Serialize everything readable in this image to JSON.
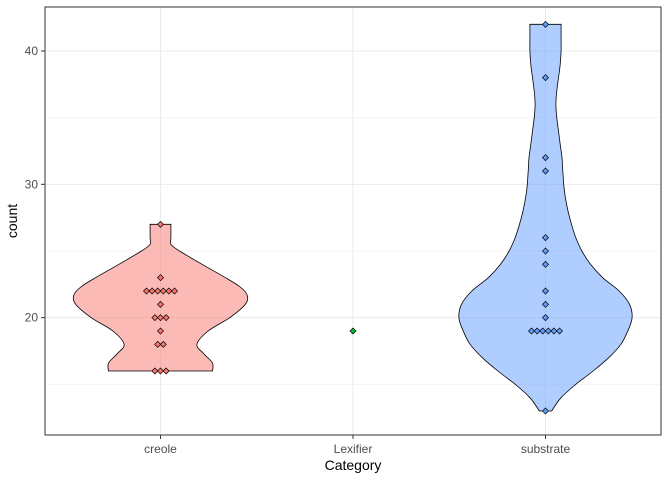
{
  "chart_data": {
    "type": "violin",
    "xlabel": "Category",
    "ylabel": "count",
    "categories": [
      "creole",
      "Lexifier",
      "substrate"
    ],
    "ylim": [
      11.2,
      43.3
    ],
    "yticks": [
      20,
      30,
      40
    ],
    "grid": true,
    "legend": "none",
    "series": [
      {
        "category": "creole",
        "color": "#F8766D",
        "points": [
          16,
          16,
          16,
          18,
          18,
          19,
          20,
          20,
          20,
          21,
          22,
          22,
          22,
          22,
          22,
          22,
          23,
          27
        ],
        "violin_min": 16,
        "violin_max": 27,
        "density": [
          [
            16,
            0.6
          ],
          [
            16.6,
            0.6
          ],
          [
            17.3,
            0.5
          ],
          [
            18,
            0.42
          ],
          [
            19,
            0.55
          ],
          [
            20,
            0.8
          ],
          [
            21,
            0.98
          ],
          [
            21.7,
            1.0
          ],
          [
            22.3,
            0.92
          ],
          [
            23,
            0.75
          ],
          [
            24,
            0.48
          ],
          [
            25,
            0.22
          ],
          [
            25.5,
            0.12
          ],
          [
            26,
            0.12
          ],
          [
            27,
            0.12
          ]
        ]
      },
      {
        "category": "Lexifier",
        "color": "#00BA38",
        "points": [
          19
        ],
        "violin_min": 19,
        "violin_max": 19,
        "density": []
      },
      {
        "category": "substrate",
        "color": "#619CFF",
        "points": [
          13,
          19,
          19,
          19,
          19,
          19,
          19,
          20,
          21,
          22,
          24,
          25,
          26,
          31,
          32,
          38,
          42
        ],
        "violin_min": 13,
        "violin_max": 42,
        "density": [
          [
            13,
            0.07
          ],
          [
            14,
            0.18
          ],
          [
            15,
            0.35
          ],
          [
            16,
            0.55
          ],
          [
            17,
            0.73
          ],
          [
            18,
            0.87
          ],
          [
            19,
            0.95
          ],
          [
            20,
            1.0
          ],
          [
            21,
            0.97
          ],
          [
            22,
            0.85
          ],
          [
            23,
            0.66
          ],
          [
            24,
            0.52
          ],
          [
            25,
            0.42
          ],
          [
            26,
            0.35
          ],
          [
            27,
            0.3
          ],
          [
            28,
            0.26
          ],
          [
            29,
            0.23
          ],
          [
            30,
            0.21
          ],
          [
            31,
            0.2
          ],
          [
            32,
            0.19
          ],
          [
            33,
            0.17
          ],
          [
            34,
            0.15
          ],
          [
            35,
            0.13
          ],
          [
            36,
            0.12
          ],
          [
            37,
            0.13
          ],
          [
            38,
            0.15
          ],
          [
            39,
            0.17
          ],
          [
            40,
            0.18
          ],
          [
            41,
            0.18
          ],
          [
            42,
            0.18
          ]
        ]
      }
    ]
  }
}
